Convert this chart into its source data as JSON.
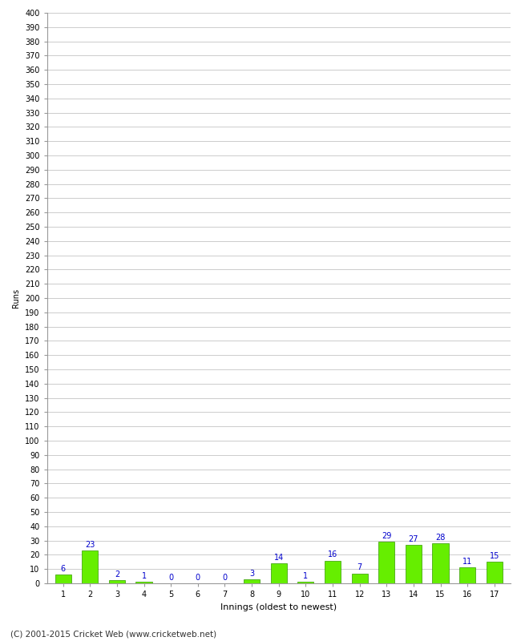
{
  "xlabel": "Innings (oldest to newest)",
  "ylabel": "Runs",
  "categories": [
    "1",
    "2",
    "3",
    "4",
    "5",
    "6",
    "7",
    "8",
    "9",
    "10",
    "11",
    "12",
    "13",
    "14",
    "15",
    "16",
    "17"
  ],
  "values": [
    6,
    23,
    2,
    1,
    0,
    0,
    0,
    3,
    14,
    1,
    16,
    7,
    29,
    27,
    28,
    11,
    15
  ],
  "bar_color": "#66ee00",
  "bar_edge_color": "#339900",
  "label_color": "#0000cc",
  "label_fontsize": 7,
  "tick_fontsize": 7,
  "xlabel_fontsize": 8,
  "ylabel_fontsize": 7,
  "ylim": [
    0,
    400
  ],
  "background_color": "#ffffff",
  "grid_color": "#cccccc",
  "footer": "(C) 2001-2015 Cricket Web (www.cricketweb.net)",
  "footer_fontsize": 7.5
}
